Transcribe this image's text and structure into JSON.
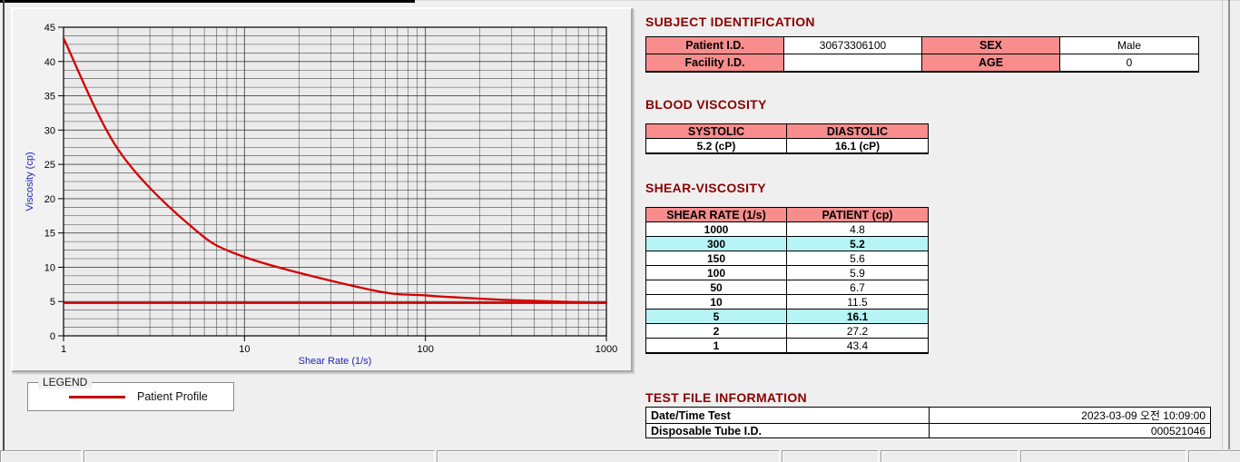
{
  "colors": {
    "section_title": "#8b0000",
    "table_header_bg": "#f98d8d",
    "highlight_row_bg": "#b7f4f6",
    "curve": "#d40000",
    "axis_label": "#2222bb",
    "grid": "#2a2a2a"
  },
  "chart_data": {
    "type": "line",
    "x_scale": "log",
    "x": [
      1,
      2,
      5,
      10,
      50,
      100,
      150,
      300,
      1000
    ],
    "series": [
      {
        "name": "Patient Profile",
        "values": [
          43.4,
          27.2,
          16.1,
          11.5,
          6.7,
          5.9,
          5.6,
          5.2,
          4.8
        ]
      }
    ],
    "reference_line_y": 4.8,
    "xlabel": "Shear Rate (1/s)",
    "ylabel": "Viscosity (cp)",
    "xlim": [
      1,
      1000
    ],
    "ylim": [
      0,
      45
    ],
    "x_ticks": [
      1,
      10,
      100,
      1000
    ],
    "y_tick_step": 5,
    "y_minor_step": 1.25,
    "grid": true,
    "legend_position": "below-left"
  },
  "legend": {
    "box_label": "LEGEND",
    "series_label": "Patient Profile"
  },
  "subject_identification": {
    "title": "SUBJECT IDENTIFICATION",
    "rows": [
      {
        "cells": [
          {
            "t": "Patient I.D.",
            "h": true
          },
          {
            "t": "30673306100",
            "h": false
          },
          {
            "t": "SEX",
            "h": true
          },
          {
            "t": "Male",
            "h": false
          }
        ]
      },
      {
        "cells": [
          {
            "t": "Facility I.D.",
            "h": true
          },
          {
            "t": "",
            "h": false
          },
          {
            "t": "AGE",
            "h": true
          },
          {
            "t": "0",
            "h": false
          }
        ]
      }
    ]
  },
  "blood_viscosity": {
    "title": "BLOOD VISCOSITY",
    "headers": [
      "SYSTOLIC",
      "DIASTOLIC"
    ],
    "values": [
      "5.2 (cP)",
      "16.1 (cP)"
    ]
  },
  "shear_viscosity": {
    "title": "SHEAR-VISCOSITY",
    "headers": [
      "SHEAR RATE (1/s)",
      "PATIENT (cp)"
    ],
    "rows": [
      {
        "rate": "1000",
        "value": "4.8",
        "highlight": false
      },
      {
        "rate": "300",
        "value": "5.2",
        "highlight": true
      },
      {
        "rate": "150",
        "value": "5.6",
        "highlight": false
      },
      {
        "rate": "100",
        "value": "5.9",
        "highlight": false
      },
      {
        "rate": "50",
        "value": "6.7",
        "highlight": false
      },
      {
        "rate": "10",
        "value": "11.5",
        "highlight": false
      },
      {
        "rate": "5",
        "value": "16.1",
        "highlight": true
      },
      {
        "rate": "2",
        "value": "27.2",
        "highlight": false
      },
      {
        "rate": "1",
        "value": "43.4",
        "highlight": false
      }
    ]
  },
  "test_file_information": {
    "title": "TEST FILE INFORMATION",
    "rows": [
      {
        "label": "Date/Time Test",
        "value": "2023-03-09   오전 10:09:00"
      },
      {
        "label": "Disposable Tube I.D.",
        "value": "000521046"
      }
    ]
  }
}
